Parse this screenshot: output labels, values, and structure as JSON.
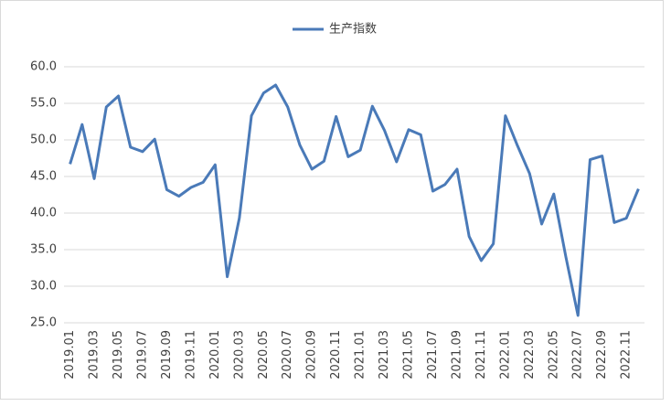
{
  "chart_data": {
    "type": "line",
    "categories": [
      "2019.01",
      null,
      "2019.03",
      null,
      "2019.05",
      null,
      "2019.07",
      null,
      "2019.09",
      null,
      "2019.11",
      null,
      "2020.01",
      null,
      "2020.03",
      null,
      "2020.05",
      null,
      "2020.07",
      null,
      "2020.09",
      null,
      "2020.11",
      null,
      "2021.01",
      null,
      "2021.03",
      null,
      "2021.05",
      null,
      "2021.07",
      null,
      "2021.09",
      null,
      "2021.11",
      null,
      "2022.01",
      null,
      "2022.03",
      null,
      "2022.05",
      null,
      "2022.07",
      null,
      "2022.09",
      null,
      "2022.11",
      null
    ],
    "series": [
      {
        "name": "生产指数",
        "color": "#4a7ab8",
        "values": [
          46.7,
          52.1,
          44.7,
          54.5,
          56.0,
          49.0,
          48.4,
          50.1,
          43.2,
          42.3,
          43.5,
          44.2,
          46.6,
          31.3,
          39.3,
          53.3,
          56.4,
          57.5,
          54.5,
          49.3,
          46.0,
          47.1,
          53.2,
          47.7,
          48.6,
          54.6,
          51.3,
          47.0,
          51.4,
          50.7,
          43.0,
          43.9,
          46.0,
          36.8,
          33.5,
          35.8,
          53.3,
          49.2,
          45.4,
          38.5,
          42.6,
          34.0,
          26.0,
          47.3,
          47.8,
          38.7,
          39.3,
          43.3
        ]
      }
    ],
    "ylim": [
      25,
      60
    ],
    "yticks": [
      {
        "value": 25,
        "label": "25.0"
      },
      {
        "value": 30,
        "label": "30.0"
      },
      {
        "value": 35,
        "label": "35.0"
      },
      {
        "value": 40,
        "label": "40.0"
      },
      {
        "value": 45,
        "label": "45.0"
      },
      {
        "value": 50,
        "label": "50.0"
      },
      {
        "value": 55,
        "label": "55.0"
      },
      {
        "value": 60,
        "label": "60.0"
      }
    ],
    "grid": true,
    "legend": "top"
  }
}
